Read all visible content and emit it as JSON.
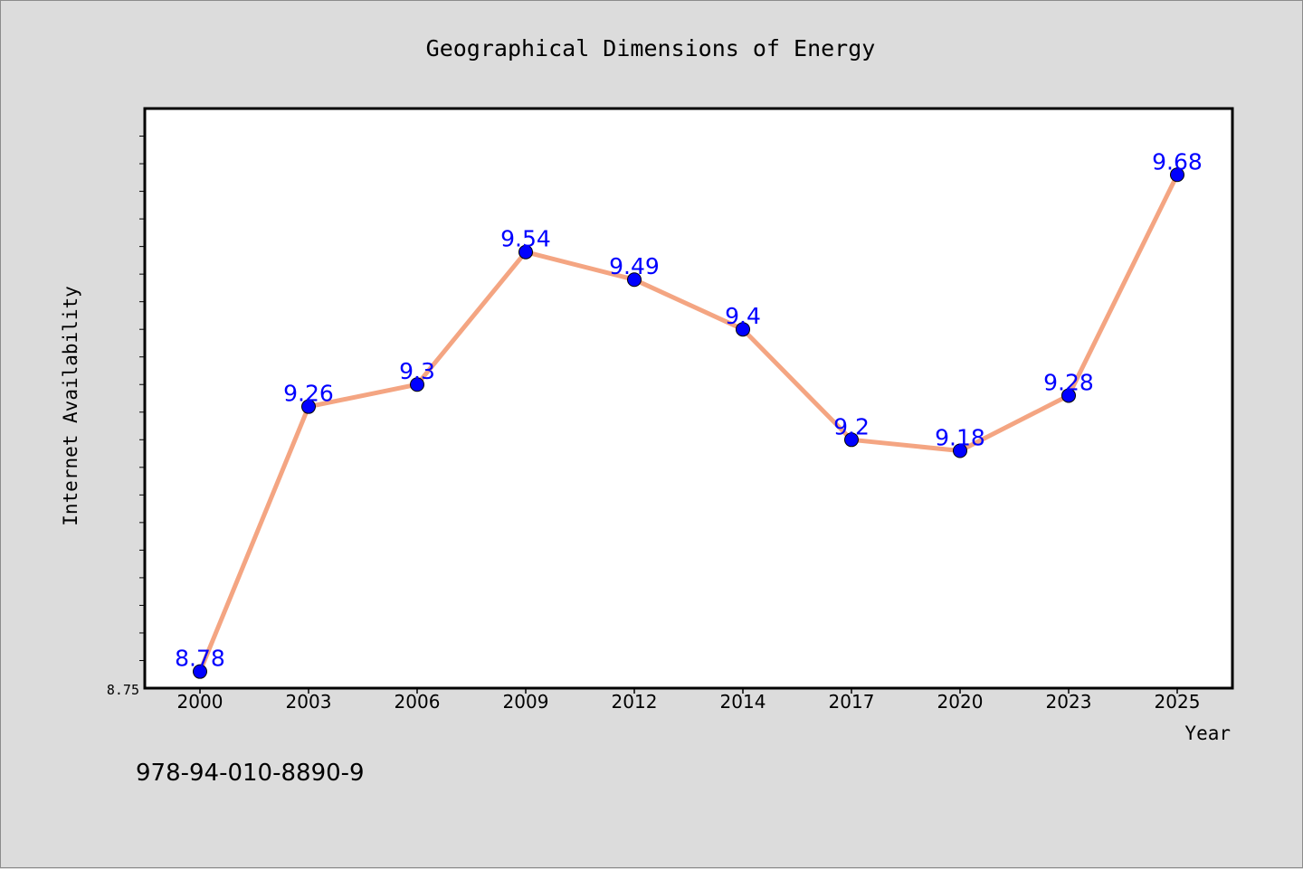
{
  "chart_data": {
    "type": "line",
    "title": "Geographical Dimensions of Energy",
    "xlabel": "Year",
    "ylabel": "Internet Availability",
    "categories": [
      "2000",
      "2003",
      "2006",
      "2009",
      "2012",
      "2014",
      "2017",
      "2020",
      "2023",
      "2025"
    ],
    "series": [
      {
        "values": [
          8.78,
          9.26,
          9.3,
          9.54,
          9.49,
          9.4,
          9.2,
          9.18,
          9.28,
          9.68
        ],
        "data_labels": [
          "8.78",
          "9.26",
          "9.3",
          "9.54",
          "9.49",
          "9.4",
          "9.2",
          "9.18",
          "9.28",
          "9.68"
        ]
      }
    ],
    "ylim": [
      8.75,
      9.8
    ],
    "y_tick_labels": [
      "8.75"
    ],
    "y_minor_tick_step": 0.05,
    "grid": false,
    "colors": {
      "line": "#f4a582",
      "marker": "#0000ff",
      "data_label": "#0000ff",
      "plot_background": "#ffffff",
      "page_background": "#dcdcdc"
    }
  },
  "footer": {
    "isbn": "978-94-010-8890-9"
  }
}
